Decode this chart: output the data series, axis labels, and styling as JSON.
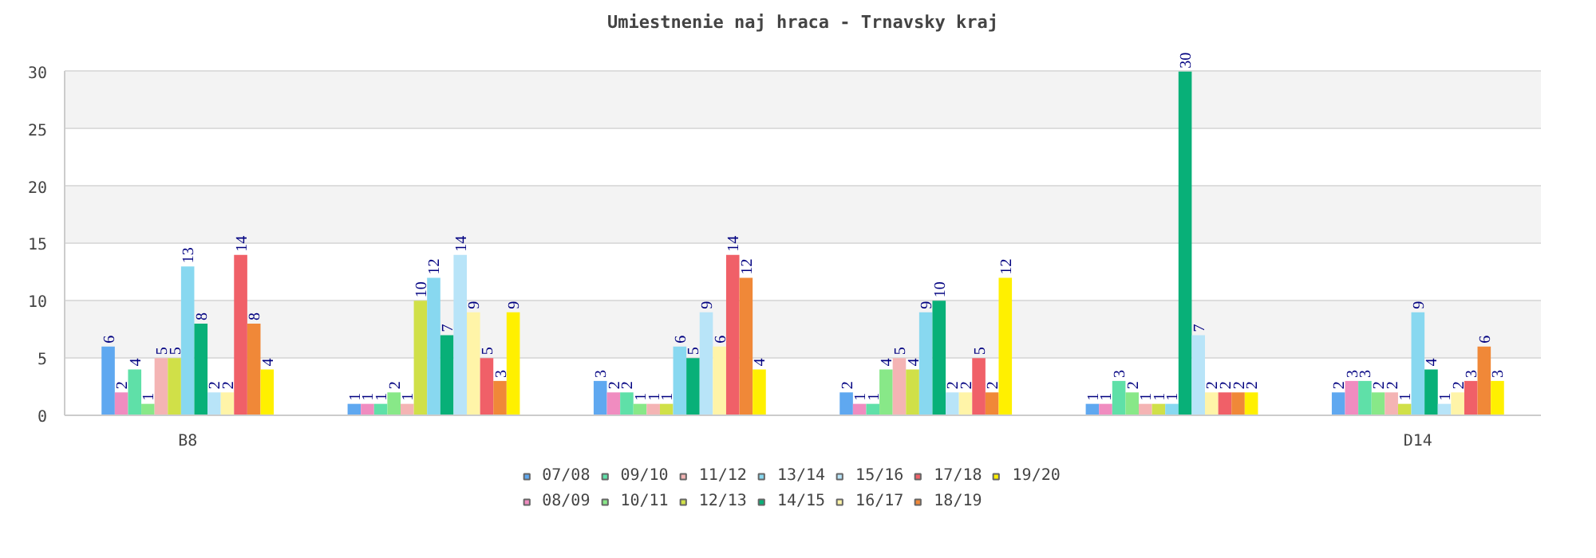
{
  "chart_data": {
    "type": "bar",
    "title": "Umiestnenie naj hraca - Trnavsky kraj",
    "categories": [
      "B8",
      null,
      null,
      null,
      null,
      "D14"
    ],
    "ylim": [
      0,
      30
    ],
    "yticks": [
      0,
      5,
      10,
      15,
      20,
      25,
      30
    ],
    "grid": "y",
    "legend": "bottom",
    "data_labels": true,
    "series": [
      {
        "name": "07/08",
        "color": "#5fa8f0",
        "values": [
          6,
          1,
          3,
          2,
          1,
          2
        ]
      },
      {
        "name": "08/09",
        "color": "#f08cc0",
        "values": [
          2,
          1,
          2,
          1,
          1,
          3
        ]
      },
      {
        "name": "09/10",
        "color": "#5fe0a8",
        "values": [
          4,
          1,
          2,
          1,
          3,
          3
        ]
      },
      {
        "name": "10/11",
        "color": "#88e888",
        "values": [
          1,
          2,
          1,
          4,
          2,
          2
        ]
      },
      {
        "name": "11/12",
        "color": "#f4b4b4",
        "values": [
          5,
          1,
          1,
          5,
          1,
          2
        ]
      },
      {
        "name": "12/13",
        "color": "#d0e048",
        "values": [
          5,
          10,
          1,
          4,
          1,
          1
        ]
      },
      {
        "name": "13/14",
        "color": "#88d8f0",
        "values": [
          13,
          12,
          6,
          9,
          1,
          9
        ]
      },
      {
        "name": "14/15",
        "color": "#08b078",
        "values": [
          8,
          7,
          5,
          10,
          30,
          4
        ]
      },
      {
        "name": "15/16",
        "color": "#b8e4f8",
        "values": [
          2,
          14,
          9,
          2,
          7,
          1
        ]
      },
      {
        "name": "16/17",
        "color": "#fff4a8",
        "values": [
          2,
          9,
          6,
          2,
          2,
          2
        ]
      },
      {
        "name": "17/18",
        "color": "#f06068",
        "values": [
          14,
          5,
          14,
          5,
          2,
          3
        ]
      },
      {
        "name": "18/19",
        "color": "#f08838",
        "values": [
          8,
          3,
          12,
          2,
          2,
          6
        ]
      },
      {
        "name": "19/20",
        "color": "#fff000",
        "values": [
          4,
          9,
          4,
          12,
          2,
          3
        ]
      }
    ]
  }
}
